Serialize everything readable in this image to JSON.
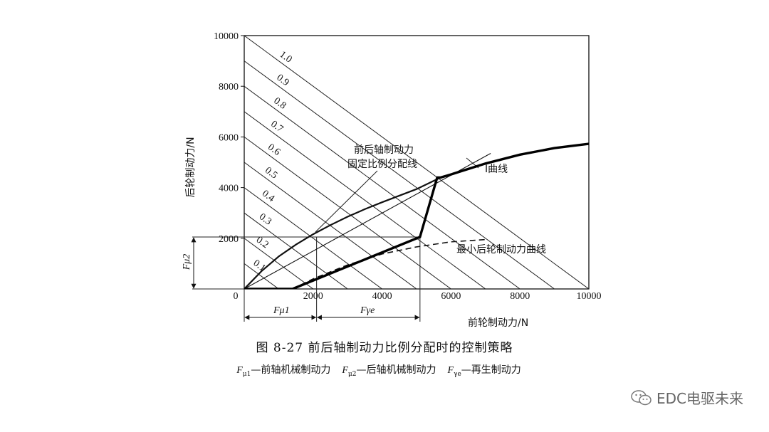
{
  "chart_data": {
    "type": "line",
    "xlabel": "前轮制动力/N",
    "ylabel": "后轮制动力/N",
    "xlim": [
      0,
      10000
    ],
    "ylim": [
      0,
      10000
    ],
    "xticks": [
      0,
      2000,
      4000,
      6000,
      8000,
      10000
    ],
    "yticks": [
      2000,
      4000,
      6000,
      8000,
      10000
    ],
    "iso_lines": [
      {
        "label": "0.1",
        "total": 1000
      },
      {
        "label": "0.2",
        "total": 2000
      },
      {
        "label": "0.3",
        "total": 3000
      },
      {
        "label": "0.4",
        "total": 4000
      },
      {
        "label": "0.5",
        "total": 5000
      },
      {
        "label": "0.6",
        "total": 6000
      },
      {
        "label": "0.7",
        "total": 7000
      },
      {
        "label": "0.8",
        "total": 8000
      },
      {
        "label": "0.9",
        "total": 9000
      },
      {
        "label": "1.0",
        "total": 10000
      }
    ],
    "series": [
      {
        "name": "I曲线",
        "style": "thick",
        "x": [
          0,
          500,
          1000,
          1500,
          2000,
          2500,
          3000,
          3500,
          4000,
          5000,
          5700,
          6000,
          7000,
          8000,
          9000,
          10000
        ],
        "y": [
          0,
          700,
          1280,
          1750,
          2160,
          2520,
          2850,
          3150,
          3420,
          3940,
          4400,
          4520,
          4950,
          5300,
          5560,
          5730
        ]
      },
      {
        "name": "前后轴制动力固定比例分配线",
        "style": "thin",
        "x": [
          0,
          7150
        ],
        "y": [
          0,
          5350
        ]
      },
      {
        "name": "最小后轮制动力曲线",
        "style": "dashed",
        "x": [
          1400,
          2000,
          3000,
          4000,
          5000,
          6000,
          7000
        ],
        "y": [
          0,
          400,
          950,
          1380,
          1660,
          1860,
          1950
        ]
      },
      {
        "name": "控制策略",
        "style": "bold",
        "x": [
          0,
          1400,
          5100,
          5600,
          5700,
          6000,
          7000,
          8000,
          9000,
          10000
        ],
        "y": [
          0,
          0,
          2050,
          4400,
          4400,
          4520,
          4950,
          5300,
          5560,
          5730
        ]
      }
    ],
    "annotations": {
      "fixed_ratio_line": [
        "前后轴制动力",
        "固定比例分配线"
      ],
      "i_curve": "I曲线",
      "min_rear_curve": "最小后轮制动力曲线",
      "f_mu1": "Fμ1",
      "f_gamma": "Fγe",
      "f_mu2": "Fμ2"
    },
    "marks": {
      "front_mech": 1400,
      "front_regen_end": 5100,
      "guide_x": 2100,
      "rear_mech": 2050
    }
  },
  "caption": {
    "title": "图 8-27   前后轴制动力比例分配时的控制策略",
    "legend": [
      {
        "sym": "F",
        "sub": "μ1",
        "text": "—前轴机械制动力"
      },
      {
        "sym": "F",
        "sub": "μ2",
        "text": "—后轴机械制动力"
      },
      {
        "sym": "F",
        "sub": "γe",
        "text": "—再生制动力"
      }
    ]
  },
  "watermark": {
    "icon": "wechat-icon",
    "text": "EDC电驱未来"
  }
}
